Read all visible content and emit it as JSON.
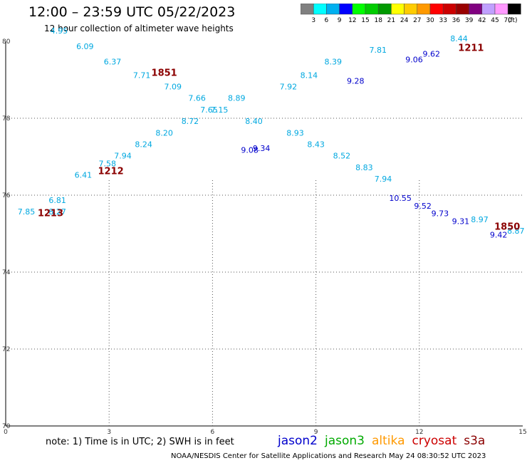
{
  "header": {
    "title": "12:00 – 23:59 UTC 05/22/2023",
    "subtitle": "12 hour collection of altimeter wave heights"
  },
  "colorbar": {
    "colors": [
      "#808080",
      "#00ffff",
      "#00b0f0",
      "#0000ff",
      "#00ff00",
      "#00cc00",
      "#009900",
      "#ffff00",
      "#ffcc00",
      "#ff9900",
      "#ff0000",
      "#cc0000",
      "#990000",
      "#800080",
      "#c0a0ff",
      "#ff99ff",
      "#000000"
    ],
    "labels": [
      "3",
      "6",
      "9",
      "12",
      "15",
      "18",
      "21",
      "24",
      "27",
      "30",
      "33",
      "36",
      "39",
      "42",
      "45",
      "70"
    ],
    "unit": "(ft)"
  },
  "chart_data": {
    "type": "scatter",
    "xlim": [
      0,
      15
    ],
    "ylim": [
      70,
      80
    ],
    "x_ticks": [
      "0",
      "3",
      "6",
      "9",
      "12",
      "15"
    ],
    "y_ticks": [
      "70",
      "72",
      "74",
      "76",
      "78",
      "80"
    ],
    "grid": true,
    "series": [
      {
        "name": "jason2",
        "color": "#0000cc",
        "points": [
          {
            "x": 7.08,
            "y": 77.1,
            "value": "9.08"
          },
          {
            "x": 7.42,
            "y": 77.15,
            "value": "9.34"
          },
          {
            "x": 10.15,
            "y": 78.9,
            "value": "9.28"
          },
          {
            "x": 11.85,
            "y": 79.45,
            "value": "9.06"
          },
          {
            "x": 12.35,
            "y": 79.6,
            "value": "9.62"
          },
          {
            "x": 11.45,
            "y": 75.85,
            "value": "10.55"
          },
          {
            "x": 12.1,
            "y": 75.65,
            "value": "9.52"
          },
          {
            "x": 12.6,
            "y": 75.45,
            "value": "9.73"
          },
          {
            "x": 13.2,
            "y": 75.25,
            "value": "9.31"
          },
          {
            "x": 14.3,
            "y": 74.9,
            "value": "9.42"
          }
        ]
      },
      {
        "name": "jason3",
        "color": "#00aa00",
        "points": []
      },
      {
        "name": "altika",
        "color": "#ff9900",
        "points": []
      },
      {
        "name": "cryosat",
        "color": "#cc0000",
        "points": []
      },
      {
        "name": "s3a",
        "color": "#8b0000",
        "points": [
          {
            "x": 1.5,
            "y": 75.8,
            "value": "6.81"
          },
          {
            "x": 1.5,
            "y": 75.5,
            "value": "8.27"
          },
          {
            "x": 2.25,
            "y": 76.45,
            "value": "6.41"
          },
          {
            "x": 2.95,
            "y": 76.75,
            "value": "7.58"
          },
          {
            "x": 3.4,
            "y": 76.95,
            "value": "7.94"
          },
          {
            "x": 4.0,
            "y": 77.25,
            "value": "8.24"
          },
          {
            "x": 4.6,
            "y": 77.55,
            "value": "8.20"
          },
          {
            "x": 5.35,
            "y": 77.85,
            "value": "8.72"
          },
          {
            "x": 5.9,
            "y": 78.15,
            "value": "7.65"
          },
          {
            "x": 6.7,
            "y": 78.45,
            "value": "8.89"
          },
          {
            "x": 8.2,
            "y": 78.75,
            "value": "7.92"
          },
          {
            "x": 8.8,
            "y": 79.05,
            "value": "8.14"
          },
          {
            "x": 9.5,
            "y": 79.4,
            "value": "8.39"
          },
          {
            "x": 10.8,
            "y": 79.7,
            "value": "7.81"
          },
          {
            "x": 13.15,
            "y": 80.0,
            "value": "8.44"
          },
          {
            "x": 0.6,
            "y": 75.5,
            "value": "7.85"
          },
          {
            "x": 1.55,
            "y": 80.2,
            "value": "4.95"
          },
          {
            "x": 2.3,
            "y": 79.8,
            "value": "6.09"
          },
          {
            "x": 3.1,
            "y": 79.4,
            "value": "6.37"
          },
          {
            "x": 3.95,
            "y": 79.05,
            "value": "7.71"
          },
          {
            "x": 4.85,
            "y": 78.75,
            "value": "7.09"
          },
          {
            "x": 5.55,
            "y": 78.45,
            "value": "7.66"
          },
          {
            "x": 6.2,
            "y": 78.15,
            "value": "7.15"
          },
          {
            "x": 7.2,
            "y": 77.85,
            "value": "8.40"
          },
          {
            "x": 8.4,
            "y": 77.55,
            "value": "8.93"
          },
          {
            "x": 9.0,
            "y": 77.25,
            "value": "8.43"
          },
          {
            "x": 9.75,
            "y": 76.95,
            "value": "8.52"
          },
          {
            "x": 10.4,
            "y": 76.65,
            "value": "8.83"
          },
          {
            "x": 10.95,
            "y": 76.35,
            "value": "7.94"
          },
          {
            "x": 13.75,
            "y": 75.3,
            "value": "8.97"
          },
          {
            "x": 14.8,
            "y": 75.0,
            "value": "8.87"
          }
        ]
      }
    ],
    "rev_labels": [
      {
        "x": 4.6,
        "y": 79.1,
        "value": "1851"
      },
      {
        "x": 13.5,
        "y": 79.75,
        "value": "1211"
      },
      {
        "x": 3.05,
        "y": 76.55,
        "value": "1212"
      },
      {
        "x": 1.3,
        "y": 75.45,
        "value": "1213"
      },
      {
        "x": 14.55,
        "y": 75.1,
        "value": "1850"
      }
    ]
  },
  "footer": {
    "note": "note:  1) Time is in UTC;  2) SWH is in feet",
    "credit": "NOAA/NESDIS Center for Satellite Applications and Research    May 24 08:30:52 UTC 2023"
  }
}
